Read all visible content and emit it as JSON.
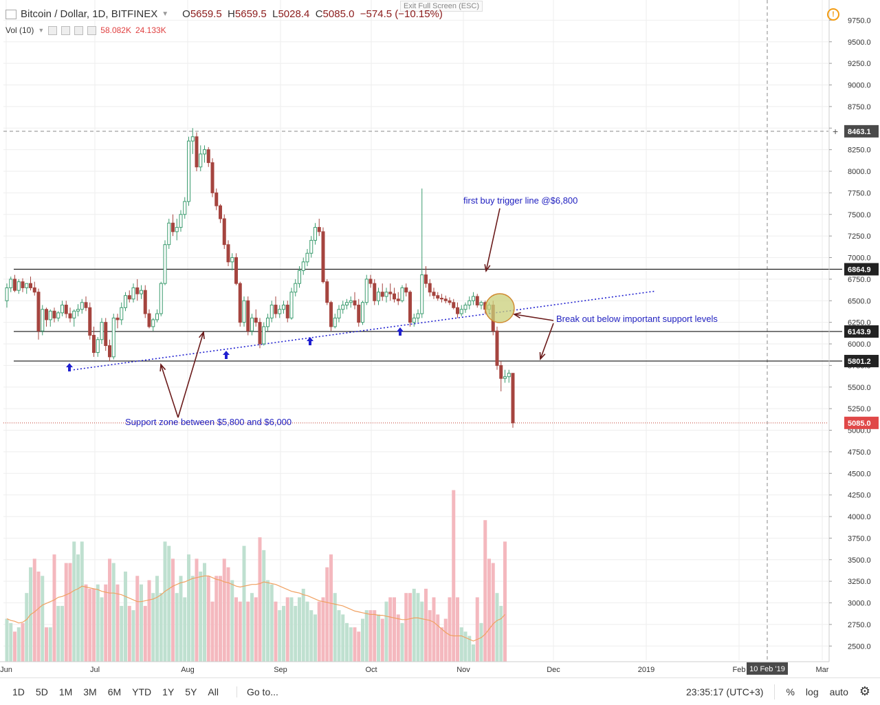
{
  "header": {
    "symbol": "Bitcoin / Dollar, 1D, BITFINEX",
    "open_label": "O",
    "open": "5659.5",
    "high_label": "H",
    "high": "5659.5",
    "low_label": "L",
    "low": "5028.4",
    "close_label": "C",
    "close": "5085.0",
    "change": "−574.5 (−10.15%)"
  },
  "volume_indicator": {
    "label": "Vol (10)",
    "value1": "58.082K",
    "value2": "24.133K"
  },
  "exit_fullscreen": "Exit Full Screen (ESC)",
  "bottom_bar": {
    "timeframes": [
      "1D",
      "5D",
      "1M",
      "3M",
      "6M",
      "YTD",
      "1Y",
      "5Y",
      "All"
    ],
    "goto": "Go to...",
    "clock": "23:35:17 (UTC+3)",
    "percent": "%",
    "log": "log",
    "auto": "auto"
  },
  "chart_data": {
    "type": "candlestick",
    "symbol": "BTCUSD",
    "price_axis_ticks": [
      9750,
      9500,
      9250,
      9000,
      8750,
      8500,
      8250,
      8000,
      7750,
      7500,
      7250,
      7000,
      6750,
      6500,
      6250,
      6000,
      5750,
      5500,
      5250,
      5000,
      4750,
      4500,
      4250,
      4000,
      3750,
      3500,
      3250,
      3000,
      2750,
      2500
    ],
    "price_axis_tick_labels": [
      "9750.0",
      "9500.0",
      "9250.0",
      "9000.0",
      "8750.0",
      "8500.0",
      "8250.0",
      "8000.0",
      "7750.0",
      "7500.0",
      "7250.0",
      "7000.0",
      "6750.0",
      "6500.0",
      "6250.0",
      "6000.0",
      "5750.0",
      "5500.0",
      "5250.0",
      "5000.0",
      "4750.0",
      "4500.0",
      "4250.0",
      "4000.0",
      "3750.0",
      "3500.0",
      "3250.0",
      "3000.0",
      "2750.0",
      "2500.0"
    ],
    "time_axis_labels": [
      "Jun",
      "Jul",
      "Aug",
      "Sep",
      "Oct",
      "Nov",
      "Dec",
      "2019",
      "Feb",
      "Mar"
    ],
    "crosshair_time_label": "10 Feb '19",
    "price_labels": [
      {
        "value": 8463.1,
        "text": "8463.1",
        "style": "crosshair"
      },
      {
        "value": 6864.9,
        "text": "6864.9",
        "style": "line"
      },
      {
        "value": 6143.9,
        "text": "6143.9",
        "style": "line"
      },
      {
        "value": 5801.2,
        "text": "5801.2",
        "style": "line"
      },
      {
        "value": 5085.0,
        "text": "5085.0",
        "style": "last"
      }
    ],
    "horizontal_lines": [
      6864.9,
      6143.9,
      5801.2
    ],
    "trendline": {
      "from": {
        "x": 0.13,
        "y": 5700
      },
      "to": {
        "x": 0.959,
        "y": 6610
      }
    },
    "annotations": [
      {
        "text": "first buy trigger line @$6,800"
      },
      {
        "text": "Break out below important support levels"
      },
      {
        "text": "Support zone between $5,800 and $6,000"
      }
    ],
    "colors": {
      "up": "#3a9b6e",
      "down": "#a5443f",
      "up_volume": "#bfe0d0",
      "down_volume": "#f4b8be",
      "trend": "#2020d0",
      "annotation": "#2020c0",
      "arrow": "#6a1a1a",
      "volume_ma": "#f0a060"
    },
    "candles": [
      [
        6500,
        6700,
        6420,
        6650
      ],
      [
        6650,
        6780,
        6600,
        6750
      ],
      [
        6750,
        6800,
        6600,
        6620
      ],
      [
        6620,
        6750,
        6580,
        6720
      ],
      [
        6720,
        6760,
        6600,
        6650
      ],
      [
        6650,
        6700,
        6580,
        6700
      ],
      [
        6700,
        6780,
        6620,
        6650
      ],
      [
        6650,
        6720,
        6560,
        6600
      ],
      [
        6600,
        6640,
        6050,
        6150
      ],
      [
        6150,
        6450,
        6100,
        6400
      ],
      [
        6400,
        6420,
        6200,
        6280
      ],
      [
        6280,
        6400,
        6200,
        6380
      ],
      [
        6380,
        6420,
        6250,
        6300
      ],
      [
        6300,
        6380,
        6260,
        6360
      ],
      [
        6360,
        6500,
        6320,
        6450
      ],
      [
        6450,
        6500,
        6300,
        6350
      ],
      [
        6350,
        6420,
        6250,
        6300
      ],
      [
        6300,
        6400,
        6200,
        6380
      ],
      [
        6380,
        6460,
        6320,
        6400
      ],
      [
        6400,
        6520,
        6350,
        6480
      ],
      [
        6480,
        6550,
        6380,
        6420
      ],
      [
        6420,
        6480,
        6050,
        6100
      ],
      [
        6100,
        6200,
        5850,
        5900
      ],
      [
        5900,
        6080,
        5850,
        6050
      ],
      [
        6050,
        6300,
        6000,
        6250
      ],
      [
        6250,
        6300,
        5920,
        5980
      ],
      [
        5980,
        6050,
        5800,
        5850
      ],
      [
        5850,
        6350,
        5820,
        6300
      ],
      [
        6300,
        6350,
        6180,
        6280
      ],
      [
        6280,
        6480,
        6220,
        6420
      ],
      [
        6420,
        6600,
        6380,
        6560
      ],
      [
        6560,
        6620,
        6480,
        6520
      ],
      [
        6520,
        6700,
        6480,
        6650
      ],
      [
        6650,
        6750,
        6500,
        6580
      ],
      [
        6580,
        6680,
        6520,
        6620
      ],
      [
        6620,
        6680,
        6300,
        6350
      ],
      [
        6350,
        6400,
        6180,
        6200
      ],
      [
        6200,
        6300,
        6150,
        6280
      ],
      [
        6280,
        6400,
        6250,
        6350
      ],
      [
        6350,
        6720,
        6320,
        6700
      ],
      [
        6700,
        7200,
        6680,
        7150
      ],
      [
        7150,
        7450,
        7100,
        7400
      ],
      [
        7400,
        7500,
        7250,
        7300
      ],
      [
        7300,
        7450,
        7200,
        7350
      ],
      [
        7350,
        7550,
        7300,
        7500
      ],
      [
        7500,
        7700,
        7450,
        7650
      ],
      [
        7650,
        8400,
        7600,
        8350
      ],
      [
        8350,
        8500,
        8200,
        8400
      ],
      [
        8400,
        8450,
        8000,
        8050
      ],
      [
        8050,
        8300,
        8000,
        8200
      ],
      [
        8200,
        8300,
        8100,
        8250
      ],
      [
        8250,
        8280,
        8050,
        8100
      ],
      [
        8100,
        8150,
        7700,
        7750
      ],
      [
        7750,
        7800,
        7550,
        7600
      ],
      [
        7600,
        7620,
        7400,
        7450
      ],
      [
        7450,
        7500,
        7100,
        7150
      ],
      [
        7150,
        7200,
        6900,
        6950
      ],
      [
        6950,
        7050,
        6850,
        7000
      ],
      [
        7000,
        7050,
        6680,
        6700
      ],
      [
        6700,
        6720,
        6200,
        6250
      ],
      [
        6250,
        6550,
        6200,
        6500
      ],
      [
        6500,
        6550,
        6100,
        6150
      ],
      [
        6150,
        6350,
        6100,
        6300
      ],
      [
        6300,
        6400,
        6200,
        6250
      ],
      [
        6250,
        6300,
        5950,
        6000
      ],
      [
        6000,
        6250,
        5980,
        6200
      ],
      [
        6200,
        6350,
        6150,
        6300
      ],
      [
        6300,
        6500,
        6250,
        6450
      ],
      [
        6450,
        6550,
        6300,
        6350
      ],
      [
        6350,
        6450,
        6300,
        6400
      ],
      [
        6400,
        6500,
        6350,
        6450
      ],
      [
        6450,
        6500,
        6250,
        6300
      ],
      [
        6300,
        6650,
        6280,
        6600
      ],
      [
        6600,
        6750,
        6550,
        6700
      ],
      [
        6700,
        6900,
        6650,
        6850
      ],
      [
        6850,
        7000,
        6800,
        6950
      ],
      [
        6950,
        7100,
        6900,
        7050
      ],
      [
        7050,
        7250,
        7000,
        7200
      ],
      [
        7200,
        7400,
        7150,
        7350
      ],
      [
        7350,
        7450,
        7250,
        7300
      ],
      [
        7300,
        7350,
        6700,
        6720
      ],
      [
        6720,
        6750,
        6450,
        6480
      ],
      [
        6480,
        6500,
        6150,
        6200
      ],
      [
        6200,
        6350,
        6180,
        6300
      ],
      [
        6300,
        6450,
        6250,
        6400
      ],
      [
        6400,
        6500,
        6350,
        6450
      ],
      [
        6450,
        6520,
        6400,
        6480
      ],
      [
        6480,
        6550,
        6420,
        6500
      ],
      [
        6500,
        6600,
        6400,
        6450
      ],
      [
        6450,
        6520,
        6200,
        6250
      ],
      [
        6250,
        6500,
        6220,
        6480
      ],
      [
        6480,
        6800,
        6450,
        6750
      ],
      [
        6750,
        6800,
        6650,
        6700
      ],
      [
        6700,
        6750,
        6450,
        6500
      ],
      [
        6500,
        6650,
        6450,
        6600
      ],
      [
        6600,
        6700,
        6500,
        6550
      ],
      [
        6550,
        6650,
        6480,
        6600
      ],
      [
        6600,
        6700,
        6500,
        6580
      ],
      [
        6580,
        6650,
        6480,
        6520
      ],
      [
        6520,
        6600,
        6450,
        6500
      ],
      [
        6500,
        6680,
        6480,
        6650
      ],
      [
        6650,
        6700,
        6550,
        6600
      ],
      [
        6600,
        6620,
        6200,
        6250
      ],
      [
        6250,
        6350,
        6200,
        6300
      ],
      [
        6300,
        6400,
        6250,
        6350
      ],
      [
        6350,
        7800,
        6300,
        6800
      ],
      [
        6800,
        6900,
        6650,
        6700
      ],
      [
        6700,
        6750,
        6550,
        6600
      ],
      [
        6600,
        6650,
        6520,
        6560
      ],
      [
        6560,
        6600,
        6500,
        6530
      ],
      [
        6530,
        6580,
        6480,
        6520
      ],
      [
        6520,
        6560,
        6470,
        6500
      ],
      [
        6500,
        6540,
        6450,
        6480
      ],
      [
        6480,
        6520,
        6400,
        6420
      ],
      [
        6420,
        6480,
        6300,
        6350
      ],
      [
        6350,
        6450,
        6320,
        6400
      ],
      [
        6400,
        6480,
        6360,
        6450
      ],
      [
        6450,
        6550,
        6400,
        6500
      ],
      [
        6500,
        6600,
        6450,
        6550
      ],
      [
        6550,
        6580,
        6420,
        6450
      ],
      [
        6450,
        6500,
        6400,
        6480
      ],
      [
        6480,
        6500,
        6350,
        6400
      ],
      [
        6400,
        6480,
        6350,
        6450
      ],
      [
        6450,
        6500,
        6100,
        6150
      ],
      [
        6150,
        6200,
        5700,
        5750
      ],
      [
        5750,
        5800,
        5450,
        5600
      ],
      [
        5600,
        5700,
        5550,
        5620
      ],
      [
        5620,
        5700,
        5550,
        5660
      ],
      [
        5659.5,
        5659.5,
        5028.4,
        5085
      ]
    ],
    "volumes": [
      2800,
      2750,
      2650,
      2700,
      2750,
      3100,
      3400,
      3500,
      3350,
      3300,
      2700,
      2700,
      3550,
      2950,
      2950,
      3450,
      3450,
      3700,
      3550,
      3700,
      3200,
      3150,
      3150,
      3200,
      3050,
      3200,
      3500,
      3450,
      3200,
      2950,
      3350,
      2950,
      2900,
      3300,
      3200,
      2950,
      3250,
      3100,
      3300,
      3100,
      3700,
      3650,
      3500,
      3100,
      3300,
      3050,
      3550,
      3300,
      3500,
      3350,
      3450,
      3300,
      3000,
      3300,
      3300,
      3500,
      3400,
      3250,
      3050,
      3000,
      3650,
      3000,
      3100,
      3050,
      3750,
      3600,
      3250,
      3200,
      3000,
      2900,
      2950,
      3050,
      3050,
      2950,
      3050,
      3150,
      3000,
      2900,
      2850,
      3000,
      3050,
      3400,
      3550,
      3100,
      2900,
      2850,
      2750,
      2700,
      2700,
      2650,
      2800,
      2900,
      2900,
      2900,
      2850,
      2800,
      3000,
      3050,
      3050,
      2850,
      2750,
      3100,
      3100,
      3150,
      3100,
      3000,
      3150,
      2900,
      3050,
      2850,
      2700,
      2800,
      3050,
      4300,
      3050,
      2700,
      2650,
      2600,
      2500,
      3050,
      2750,
      3950,
      3500,
      3450,
      3100,
      2950,
      3700
    ],
    "volume_up": [
      1,
      1,
      0,
      1,
      0,
      1,
      1,
      0,
      0,
      1,
      0,
      1,
      0,
      1,
      1,
      0,
      0,
      1,
      1,
      1,
      0,
      0,
      0,
      1,
      1,
      0,
      0,
      1,
      0,
      1,
      1,
      0,
      1,
      0,
      1,
      0,
      0,
      1,
      1,
      1,
      1,
      1,
      0,
      1,
      1,
      1,
      1,
      1,
      0,
      1,
      1,
      0,
      0,
      0,
      0,
      0,
      0,
      1,
      0,
      0,
      1,
      0,
      1,
      0,
      0,
      1,
      1,
      1,
      0,
      1,
      1,
      0,
      1,
      1,
      1,
      1,
      1,
      1,
      1,
      0,
      0,
      0,
      0,
      1,
      1,
      1,
      1,
      1,
      0,
      0,
      1,
      1,
      0,
      0,
      1,
      0,
      1,
      0,
      0,
      0,
      1,
      0,
      0,
      1,
      1,
      1,
      0,
      0,
      0,
      0,
      0,
      0,
      0,
      0,
      0,
      1,
      1,
      1,
      1,
      0,
      1,
      0,
      0,
      0,
      1,
      1,
      0
    ],
    "volume_ma": [
      2800,
      2780,
      2770,
      2750,
      2760,
      2790,
      2850,
      2880,
      2920,
      2960,
      2980,
      3000,
      3020,
      3050,
      3060,
      3080,
      3100,
      3130,
      3150,
      3180,
      3170,
      3160,
      3150,
      3140,
      3120,
      3110,
      3100,
      3100,
      3090,
      3080,
      3060,
      3040,
      3020,
      3000,
      3000,
      3010,
      3020,
      3030,
      3050,
      3080,
      3120,
      3150,
      3180,
      3200,
      3220,
      3230,
      3250,
      3270,
      3280,
      3290,
      3300,
      3300,
      3280,
      3260,
      3250,
      3230,
      3220,
      3200,
      3180,
      3170,
      3180,
      3190,
      3200,
      3200,
      3210,
      3230,
      3220,
      3210,
      3200,
      3180,
      3160,
      3140,
      3120,
      3110,
      3100,
      3080,
      3070,
      3050,
      3030,
      3010,
      3000,
      2990,
      2980,
      2970,
      2960,
      2950,
      2930,
      2910,
      2890,
      2880,
      2870,
      2860,
      2850,
      2850,
      2840,
      2840,
      2830,
      2820,
      2810,
      2800,
      2790,
      2790,
      2800,
      2810,
      2810,
      2800,
      2790,
      2780,
      2760,
      2720,
      2680,
      2640,
      2610,
      2600,
      2600,
      2600,
      2580,
      2560,
      2540,
      2560,
      2580,
      2620,
      2680,
      2740,
      2780,
      2800,
      2850
    ]
  }
}
